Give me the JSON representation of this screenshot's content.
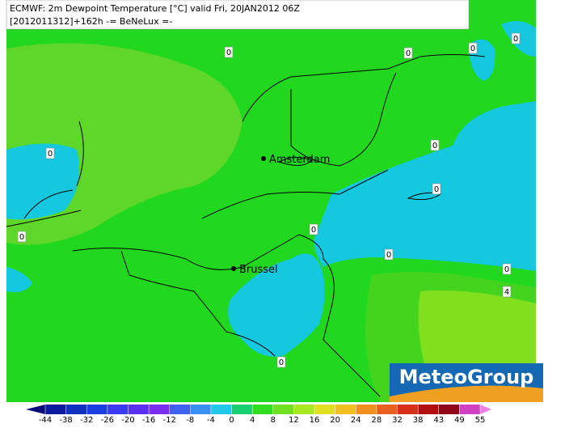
{
  "title": {
    "line1": "ECMWF: 2m Dewpoint Temperature [°C] valid Fri, 20JAN2012 06Z",
    "line2": "[2012011312]+162h  -= BeNeLux =-"
  },
  "cities": [
    "Amsterdam",
    "Brussel"
  ],
  "contour_labels": [
    0,
    0,
    0,
    0,
    0,
    0,
    0,
    0,
    0,
    0,
    0,
    4,
    0
  ],
  "logo": "MeteoGroup",
  "colorbar": {
    "ticks": [
      -44,
      -38,
      -32,
      -26,
      -20,
      -16,
      -12,
      -8,
      -4,
      0,
      4,
      8,
      12,
      16,
      20,
      24,
      28,
      32,
      38,
      43,
      49,
      55
    ],
    "colors": [
      "#0a0a78",
      "#0c1a9c",
      "#1030c0",
      "#1a3fe0",
      "#3a3af0",
      "#5a30f0",
      "#7a2ef0",
      "#4060f0",
      "#3a90f0",
      "#22c8e8",
      "#18d070",
      "#30dd20",
      "#70e020",
      "#a8e820",
      "#e0e020",
      "#f0c020",
      "#f09020",
      "#e86020",
      "#d83018",
      "#b01010",
      "#900818",
      "#d040c0",
      "#f080e0"
    ]
  }
}
